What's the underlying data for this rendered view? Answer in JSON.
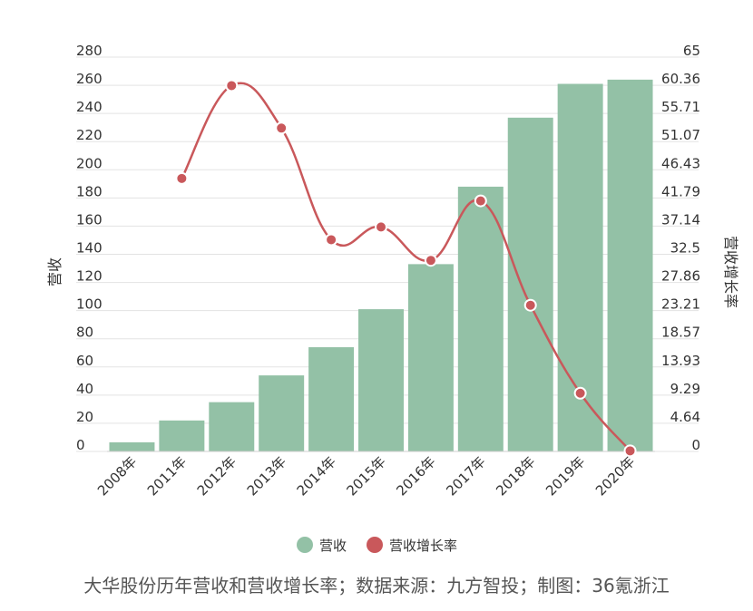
{
  "chart_data": {
    "type": "bar",
    "categories": [
      "2008年",
      "2011年",
      "2012年",
      "2013年",
      "2014年",
      "2015年",
      "2016年",
      "2017年",
      "2018年",
      "2019年",
      "2020年"
    ],
    "series": [
      {
        "name": "营收",
        "type": "bar",
        "axis": "left",
        "color": "#93c1a6",
        "values": [
          6.5,
          22,
          35,
          54,
          74,
          101,
          133,
          188,
          237,
          261,
          264
        ]
      },
      {
        "name": "营收增长率",
        "type": "line",
        "axis": "right",
        "color": "#c9585b",
        "values": [
          null,
          45.0,
          60.3,
          53.3,
          34.9,
          37.0,
          31.5,
          41.3,
          24.1,
          9.6,
          0.1
        ]
      }
    ],
    "ylabel": "营收",
    "ylabel_right": "营收增长率",
    "ylim": [
      0,
      280
    ],
    "ylim_right": [
      0,
      65
    ],
    "yticks_left": [
      "0",
      "20",
      "40",
      "60",
      "80",
      "100",
      "120",
      "140",
      "160",
      "180",
      "200",
      "220",
      "240",
      "260",
      "280"
    ],
    "yticks_right": [
      "0",
      "4.64",
      "9.29",
      "13.93",
      "18.57",
      "23.21",
      "27.86",
      "32.5",
      "37.14",
      "41.79",
      "46.43",
      "51.07",
      "55.71",
      "60.36",
      "65"
    ],
    "grid": true,
    "legend_position": "bottom",
    "legend": [
      "营收",
      "营收增长率"
    ]
  },
  "caption": "大华股份历年营收和营收增长率；数据来源：九方智投；制图：36氪浙江"
}
